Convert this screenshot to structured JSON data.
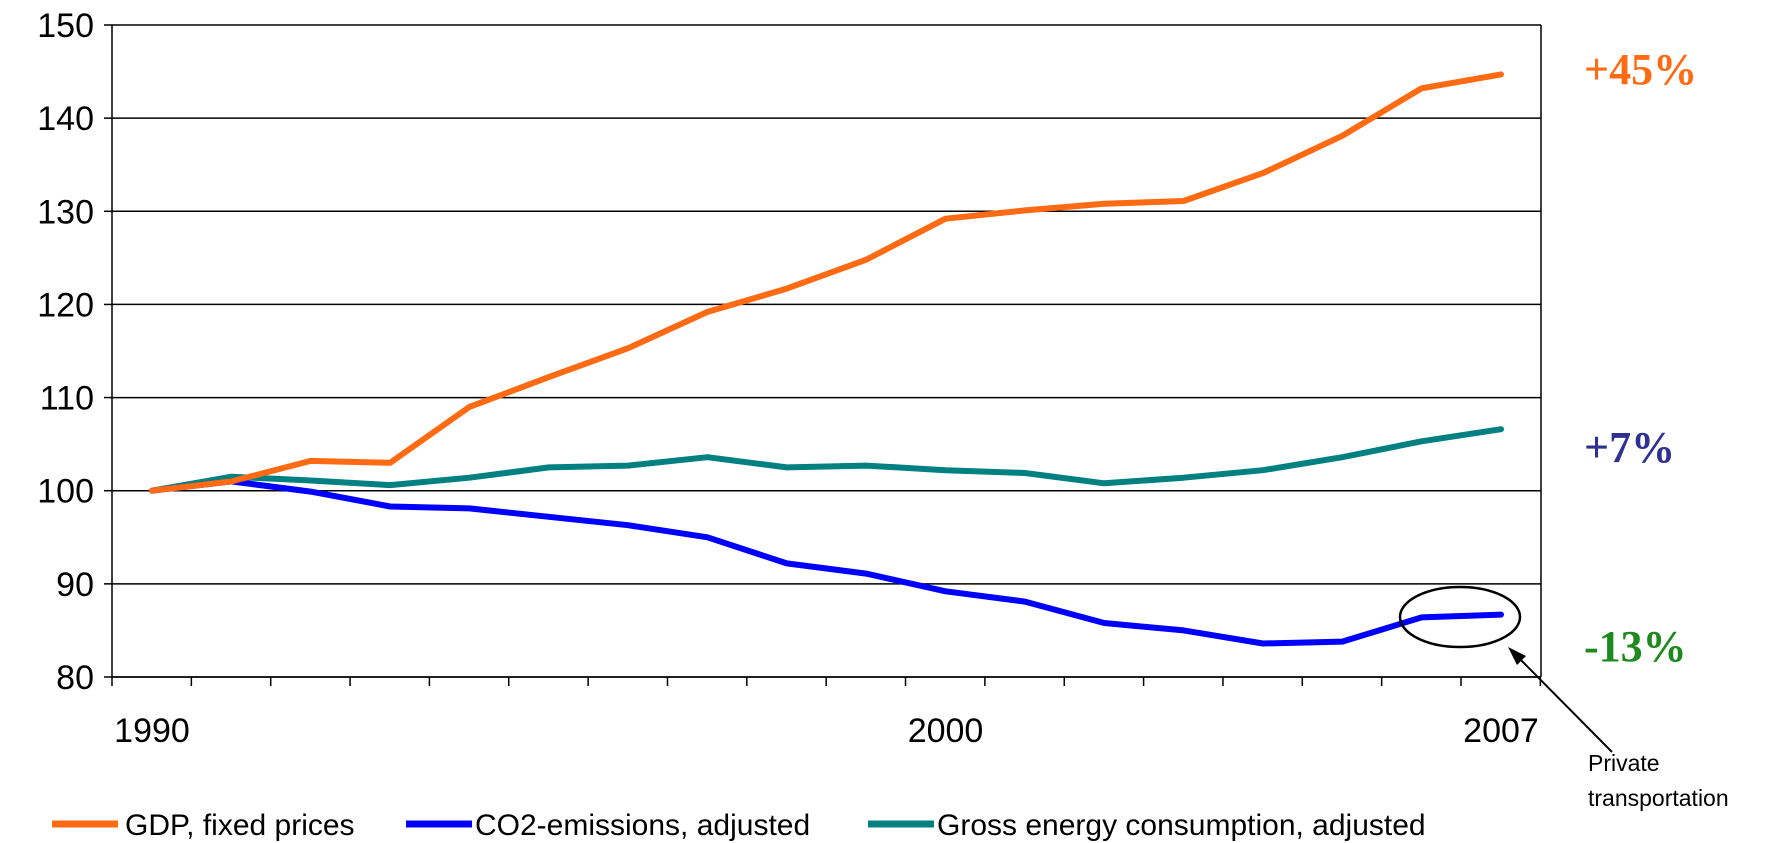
{
  "chart_data": {
    "type": "line",
    "x": [
      1990,
      1991,
      1992,
      1993,
      1994,
      1995,
      1996,
      1997,
      1998,
      1999,
      2000,
      2001,
      2002,
      2003,
      2004,
      2005,
      2006,
      2007
    ],
    "x_tick_labels": [
      "1990",
      "2000",
      "2007"
    ],
    "y_ticks": [
      80,
      90,
      100,
      110,
      120,
      130,
      140,
      150
    ],
    "ylim": [
      80,
      150
    ],
    "grid": "horizontal",
    "legend_position": "bottom",
    "series": [
      {
        "name": "GDP, fixed prices",
        "color": "#FF6A13",
        "values": [
          100,
          101,
          103.2,
          103,
          109,
          112.2,
          115.3,
          119.2,
          121.7,
          124.8,
          129.2,
          130.1,
          130.8,
          131.1,
          134.1,
          138.1,
          143.2,
          144.7
        ],
        "change_label": "+45%"
      },
      {
        "name": "CO2-emissions, adjusted",
        "color": "#0000FF",
        "values": [
          100,
          101,
          99.9,
          98.3,
          98.1,
          97.2,
          96.3,
          95,
          92.2,
          91.1,
          89.2,
          88.1,
          85.8,
          85,
          83.6,
          83.8,
          86.4,
          86.7
        ],
        "change_label": "-13%"
      },
      {
        "name": "Gross energy consumption, adjusted",
        "color": "#008080",
        "values": [
          100,
          101.5,
          101.1,
          100.6,
          101.4,
          102.5,
          102.7,
          103.6,
          102.5,
          102.7,
          102.2,
          101.9,
          100.8,
          101.4,
          102.2,
          103.6,
          105.3,
          106.6
        ],
        "change_label": "+7%"
      }
    ],
    "change_label_colors": [
      "#FF6A13",
      "#2E3192",
      "#1E8A1E"
    ],
    "annotation": {
      "text_line1": "Private",
      "text_line2": "transportation"
    }
  }
}
